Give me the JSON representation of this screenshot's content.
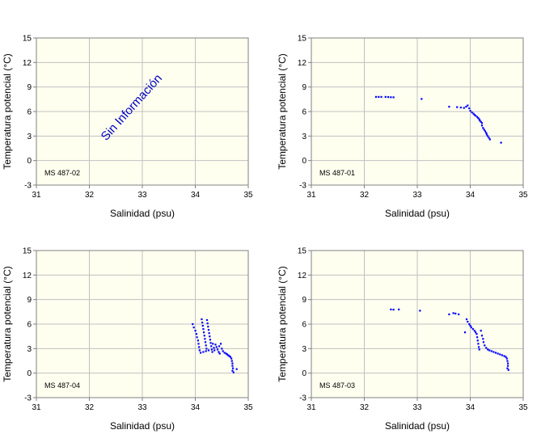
{
  "colors": {
    "plot_bg": "#FFFFF0",
    "grid": "#C0C0C0",
    "frame": "#808080",
    "points": "#0000FF",
    "text": "#000000",
    "note": "#0000C0"
  },
  "chart_data": [
    {
      "type": "scatter",
      "station": "MS 487-02",
      "xlabel": "Salinidad (psu)",
      "ylabel": "Temperatura potencial (°C)",
      "xlim": [
        31,
        35
      ],
      "ylim": [
        -3,
        15
      ],
      "xticks": [
        31,
        32,
        33,
        34,
        35
      ],
      "yticks": [
        -3,
        0,
        3,
        6,
        9,
        12,
        15
      ],
      "annotation": "Sin Información",
      "points": []
    },
    {
      "type": "scatter",
      "station": "MS 487-01",
      "xlabel": "Salinidad (psu)",
      "ylabel": "Temperatura potencial (°C)",
      "xlim": [
        31,
        35
      ],
      "ylim": [
        -3,
        15
      ],
      "xticks": [
        31,
        32,
        33,
        34,
        35
      ],
      "yticks": [
        -3,
        0,
        3,
        6,
        9,
        12,
        15
      ],
      "points": [
        [
          32.22,
          7.8
        ],
        [
          32.27,
          7.8
        ],
        [
          32.32,
          7.8
        ],
        [
          32.4,
          7.8
        ],
        [
          32.45,
          7.78
        ],
        [
          32.5,
          7.76
        ],
        [
          32.55,
          7.75
        ],
        [
          33.08,
          7.55
        ],
        [
          33.6,
          6.6
        ],
        [
          33.75,
          6.55
        ],
        [
          33.82,
          6.5
        ],
        [
          33.88,
          6.45
        ],
        [
          33.92,
          6.6
        ],
        [
          33.95,
          6.75
        ],
        [
          33.98,
          6.4
        ],
        [
          34.0,
          6.1
        ],
        [
          34.03,
          5.9
        ],
        [
          34.06,
          5.75
        ],
        [
          34.08,
          5.6
        ],
        [
          34.1,
          5.5
        ],
        [
          34.13,
          5.35
        ],
        [
          34.15,
          5.2
        ],
        [
          34.17,
          5.05
        ],
        [
          34.18,
          4.9
        ],
        [
          34.2,
          4.75
        ],
        [
          34.22,
          4.6
        ],
        [
          34.22,
          4.3
        ],
        [
          34.24,
          4.0
        ],
        [
          34.26,
          3.8
        ],
        [
          34.28,
          3.6
        ],
        [
          34.3,
          3.4
        ],
        [
          34.31,
          3.2
        ],
        [
          34.33,
          3.0
        ],
        [
          34.35,
          2.8
        ],
        [
          34.37,
          2.6
        ],
        [
          34.58,
          2.2
        ]
      ]
    },
    {
      "type": "scatter",
      "station": "MS 487-04",
      "xlabel": "Salinidad (psu)",
      "ylabel": "Temperatura potencial (°C)",
      "xlim": [
        31,
        35
      ],
      "ylim": [
        -3,
        15
      ],
      "xticks": [
        31,
        32,
        33,
        34,
        35
      ],
      "yticks": [
        -3,
        0,
        3,
        6,
        9,
        12,
        15
      ],
      "points": [
        [
          33.95,
          6.0
        ],
        [
          33.97,
          5.6
        ],
        [
          34.0,
          5.2
        ],
        [
          34.02,
          4.8
        ],
        [
          34.03,
          4.4
        ],
        [
          34.05,
          4.0
        ],
        [
          34.06,
          3.6
        ],
        [
          34.07,
          3.2
        ],
        [
          34.08,
          2.8
        ],
        [
          34.1,
          2.5
        ],
        [
          34.12,
          6.6
        ],
        [
          34.13,
          6.2
        ],
        [
          34.14,
          5.8
        ],
        [
          34.15,
          5.4
        ],
        [
          34.16,
          5.0
        ],
        [
          34.17,
          4.6
        ],
        [
          34.18,
          4.2
        ],
        [
          34.19,
          3.8
        ],
        [
          34.2,
          3.4
        ],
        [
          34.21,
          3.0
        ],
        [
          34.22,
          6.5
        ],
        [
          34.23,
          6.1
        ],
        [
          34.24,
          5.7
        ],
        [
          34.25,
          5.3
        ],
        [
          34.26,
          4.9
        ],
        [
          34.27,
          4.5
        ],
        [
          34.28,
          4.1
        ],
        [
          34.29,
          3.7
        ],
        [
          34.3,
          3.3
        ],
        [
          34.31,
          2.9
        ],
        [
          34.15,
          2.6
        ],
        [
          34.2,
          2.7
        ],
        [
          34.25,
          2.8
        ],
        [
          34.32,
          2.6
        ],
        [
          34.35,
          3.1
        ],
        [
          34.38,
          3.5
        ],
        [
          34.4,
          3.2
        ],
        [
          34.42,
          2.9
        ],
        [
          34.45,
          3.3
        ],
        [
          34.48,
          3.6
        ],
        [
          34.5,
          3.0
        ],
        [
          34.52,
          2.7
        ],
        [
          34.55,
          2.5
        ],
        [
          34.58,
          2.4
        ],
        [
          34.6,
          2.3
        ],
        [
          34.62,
          2.2
        ],
        [
          34.64,
          2.1
        ],
        [
          34.66,
          2.0
        ],
        [
          34.68,
          1.8
        ],
        [
          34.69,
          1.5
        ],
        [
          34.7,
          1.2
        ],
        [
          34.7,
          0.9
        ],
        [
          34.71,
          0.6
        ],
        [
          34.7,
          0.3
        ],
        [
          34.72,
          0.1
        ],
        [
          34.78,
          0.5
        ],
        [
          34.33,
          3.6
        ],
        [
          34.36,
          2.8
        ],
        [
          34.44,
          2.6
        ],
        [
          34.46,
          2.4
        ]
      ]
    },
    {
      "type": "scatter",
      "station": "MS 487-03",
      "xlabel": "Salinidad (psu)",
      "ylabel": "Temperatura potencial (°C)",
      "xlim": [
        31,
        35
      ],
      "ylim": [
        -3,
        15
      ],
      "xticks": [
        31,
        32,
        33,
        34,
        35
      ],
      "yticks": [
        -3,
        0,
        3,
        6,
        9,
        12,
        15
      ],
      "points": [
        [
          32.5,
          7.8
        ],
        [
          32.55,
          7.78
        ],
        [
          32.65,
          7.8
        ],
        [
          33.05,
          7.65
        ],
        [
          33.6,
          7.2
        ],
        [
          33.68,
          7.35
        ],
        [
          33.72,
          7.3
        ],
        [
          33.78,
          7.2
        ],
        [
          33.9,
          5.0
        ],
        [
          33.93,
          6.6
        ],
        [
          33.95,
          6.3
        ],
        [
          33.98,
          6.0
        ],
        [
          34.0,
          5.8
        ],
        [
          34.02,
          5.6
        ],
        [
          34.05,
          5.4
        ],
        [
          34.08,
          5.2
        ],
        [
          34.1,
          5.0
        ],
        [
          34.12,
          4.8
        ],
        [
          34.13,
          4.4
        ],
        [
          34.14,
          4.0
        ],
        [
          34.15,
          3.6
        ],
        [
          34.16,
          3.2
        ],
        [
          34.17,
          2.9
        ],
        [
          34.2,
          5.2
        ],
        [
          34.22,
          4.6
        ],
        [
          34.24,
          4.2
        ],
        [
          34.25,
          3.8
        ],
        [
          34.27,
          3.4
        ],
        [
          34.3,
          3.1
        ],
        [
          34.33,
          2.9
        ],
        [
          34.36,
          2.8
        ],
        [
          34.4,
          2.7
        ],
        [
          34.44,
          2.6
        ],
        [
          34.48,
          2.5
        ],
        [
          34.52,
          2.4
        ],
        [
          34.56,
          2.3
        ],
        [
          34.6,
          2.2
        ],
        [
          34.64,
          2.1
        ],
        [
          34.67,
          2.0
        ],
        [
          34.69,
          1.8
        ],
        [
          34.7,
          1.5
        ],
        [
          34.71,
          1.2
        ],
        [
          34.71,
          0.9
        ],
        [
          34.7,
          0.6
        ],
        [
          34.72,
          0.4
        ]
      ]
    }
  ]
}
